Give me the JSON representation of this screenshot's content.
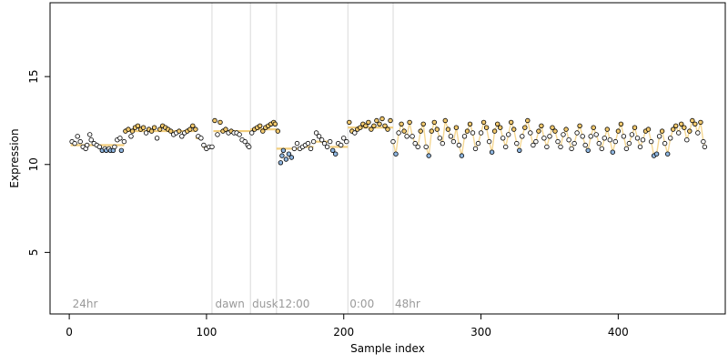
{
  "chart_data": {
    "type": "scatter",
    "title": "",
    "xlabel": "Sample index",
    "ylabel": "Expression",
    "xlim": [
      -14,
      478
    ],
    "ylim": [
      1.5,
      19.2
    ],
    "x_ticks": [
      0,
      100,
      200,
      300,
      400
    ],
    "y_ticks": [
      5,
      10,
      15
    ],
    "grid": false,
    "legend": "none",
    "sections": [
      {
        "label": "24hr",
        "start": 1
      },
      {
        "label": "dawn",
        "start": 105
      },
      {
        "label": "dusk",
        "start": 132
      },
      {
        "label": "12:00",
        "start": 151
      },
      {
        "label": "0:00",
        "start": 203
      },
      {
        "label": "48hr",
        "start": 236
      }
    ],
    "section_boundaries": [
      104,
      132,
      151,
      203,
      236
    ],
    "colors": {
      "point_fill_high": "#f2c96e",
      "point_fill_low": "#8fb6e0",
      "point_fill_mid": "#ffffff",
      "point_stroke": "#000000",
      "fit_high": "#f2c96e",
      "fit_low": "#8fb6e0",
      "boundary_line": "#d9d9d9"
    },
    "fitted_segments": [
      {
        "x": [
          1,
          40
        ],
        "y": 11.1
      },
      {
        "x": [
          40,
          92
        ],
        "y": 11.9
      },
      {
        "x": [
          92,
          97
        ],
        "y": 11.5
      },
      {
        "x": [
          97,
          105
        ],
        "y": 11.0
      },
      {
        "x": [
          105,
          132
        ],
        "y": 11.9
      },
      {
        "x": [
          132,
          151
        ],
        "y": 12.0
      },
      {
        "x": [
          151,
          170
        ],
        "y": 10.9
      },
      {
        "x": [
          170,
          178
        ],
        "y": 11.0
      },
      {
        "x": [
          178,
          190
        ],
        "y": 11.3
      },
      {
        "x": [
          190,
          203
        ],
        "y": 11.0
      },
      {
        "x": [
          203,
          236
        ],
        "y": 12.1
      }
    ],
    "series": [
      {
        "points": [
          [
            2,
            11.3
          ],
          [
            4,
            11.2
          ],
          [
            6,
            11.6
          ],
          [
            8,
            11.3
          ],
          [
            10,
            11.0
          ],
          [
            12,
            10.9
          ],
          [
            13,
            11.1
          ],
          [
            15,
            11.7
          ],
          [
            16,
            11.4
          ],
          [
            18,
            11.2
          ],
          [
            20,
            11.1
          ],
          [
            22,
            11.0
          ],
          [
            24,
            10.8
          ],
          [
            26,
            10.9
          ],
          [
            27,
            10.8
          ],
          [
            29,
            10.9
          ],
          [
            30,
            10.8
          ],
          [
            32,
            10.8
          ],
          [
            33,
            11.0
          ],
          [
            35,
            11.4
          ],
          [
            37,
            11.5
          ],
          [
            38,
            10.8
          ],
          [
            40,
            11.3
          ],
          [
            41,
            11.9
          ],
          [
            43,
            12.0
          ],
          [
            45,
            11.6
          ],
          [
            46,
            11.9
          ],
          [
            48,
            12.1
          ],
          [
            50,
            12.2
          ],
          [
            52,
            12.0
          ],
          [
            54,
            12.1
          ],
          [
            56,
            11.8
          ],
          [
            58,
            12.0
          ],
          [
            60,
            11.9
          ],
          [
            62,
            12.1
          ],
          [
            64,
            11.5
          ],
          [
            66,
            12.0
          ],
          [
            68,
            12.2
          ],
          [
            70,
            12.1
          ],
          [
            72,
            12.0
          ],
          [
            74,
            11.9
          ],
          [
            76,
            11.7
          ],
          [
            78,
            11.8
          ],
          [
            80,
            11.9
          ],
          [
            82,
            11.6
          ],
          [
            84,
            11.8
          ],
          [
            86,
            11.9
          ],
          [
            88,
            12.0
          ],
          [
            90,
            12.2
          ],
          [
            92,
            12.0
          ],
          [
            94,
            11.6
          ],
          [
            96,
            11.5
          ],
          [
            98,
            11.1
          ],
          [
            100,
            10.9
          ],
          [
            102,
            11.0
          ],
          [
            104,
            11.0
          ],
          [
            106,
            12.5
          ],
          [
            108,
            11.7
          ],
          [
            110,
            12.4
          ],
          [
            112,
            11.9
          ],
          [
            114,
            12.0
          ],
          [
            116,
            11.8
          ],
          [
            118,
            11.9
          ],
          [
            120,
            11.8
          ],
          [
            122,
            11.8
          ],
          [
            124,
            11.7
          ],
          [
            126,
            11.4
          ],
          [
            128,
            11.3
          ],
          [
            130,
            11.1
          ],
          [
            131,
            11.0
          ],
          [
            133,
            11.8
          ],
          [
            135,
            12.0
          ],
          [
            137,
            12.1
          ],
          [
            139,
            12.2
          ],
          [
            141,
            11.9
          ],
          [
            143,
            12.1
          ],
          [
            145,
            12.2
          ],
          [
            147,
            12.3
          ],
          [
            149,
            12.4
          ],
          [
            150,
            12.3
          ],
          [
            152,
            11.9
          ],
          [
            154,
            10.1
          ],
          [
            155,
            10.5
          ],
          [
            156,
            10.8
          ],
          [
            158,
            10.3
          ],
          [
            160,
            10.6
          ],
          [
            162,
            10.4
          ],
          [
            164,
            10.9
          ],
          [
            166,
            11.2
          ],
          [
            168,
            10.9
          ],
          [
            170,
            11.0
          ],
          [
            172,
            11.1
          ],
          [
            174,
            11.2
          ],
          [
            176,
            10.9
          ],
          [
            178,
            11.3
          ],
          [
            180,
            11.8
          ],
          [
            182,
            11.6
          ],
          [
            184,
            11.4
          ],
          [
            186,
            11.2
          ],
          [
            188,
            11.0
          ],
          [
            190,
            11.3
          ],
          [
            192,
            10.8
          ],
          [
            194,
            10.6
          ],
          [
            196,
            11.2
          ],
          [
            198,
            11.1
          ],
          [
            200,
            11.5
          ],
          [
            202,
            11.3
          ],
          [
            204,
            12.4
          ],
          [
            206,
            11.9
          ],
          [
            208,
            11.8
          ],
          [
            210,
            12.0
          ],
          [
            212,
            12.1
          ],
          [
            214,
            12.3
          ],
          [
            216,
            12.2
          ],
          [
            218,
            12.4
          ],
          [
            220,
            12.0
          ],
          [
            222,
            12.2
          ],
          [
            224,
            12.5
          ],
          [
            226,
            12.3
          ],
          [
            228,
            12.6
          ],
          [
            230,
            12.2
          ],
          [
            232,
            12.0
          ],
          [
            234,
            12.5
          ],
          [
            236,
            11.3
          ],
          [
            238,
            10.6
          ],
          [
            240,
            11.8
          ],
          [
            242,
            12.3
          ],
          [
            244,
            11.9
          ],
          [
            246,
            11.6
          ],
          [
            248,
            12.4
          ],
          [
            250,
            11.6
          ],
          [
            252,
            11.2
          ],
          [
            254,
            11.0
          ],
          [
            256,
            11.9
          ],
          [
            258,
            12.3
          ],
          [
            260,
            11.0
          ],
          [
            262,
            10.5
          ],
          [
            264,
            11.9
          ],
          [
            266,
            12.4
          ],
          [
            268,
            12.0
          ],
          [
            270,
            11.5
          ],
          [
            272,
            11.2
          ],
          [
            274,
            12.5
          ],
          [
            276,
            12.0
          ],
          [
            278,
            11.6
          ],
          [
            280,
            11.3
          ],
          [
            282,
            12.1
          ],
          [
            284,
            11.1
          ],
          [
            286,
            10.5
          ],
          [
            288,
            11.6
          ],
          [
            290,
            11.9
          ],
          [
            292,
            12.3
          ],
          [
            294,
            11.8
          ],
          [
            296,
            10.9
          ],
          [
            298,
            11.2
          ],
          [
            300,
            11.8
          ],
          [
            302,
            12.4
          ],
          [
            304,
            12.1
          ],
          [
            306,
            11.3
          ],
          [
            308,
            10.7
          ],
          [
            310,
            11.9
          ],
          [
            312,
            12.3
          ],
          [
            314,
            12.1
          ],
          [
            316,
            11.5
          ],
          [
            318,
            11.0
          ],
          [
            320,
            11.7
          ],
          [
            322,
            12.4
          ],
          [
            324,
            12.0
          ],
          [
            326,
            11.2
          ],
          [
            328,
            10.8
          ],
          [
            330,
            11.6
          ],
          [
            332,
            12.1
          ],
          [
            334,
            12.5
          ],
          [
            336,
            11.8
          ],
          [
            338,
            11.1
          ],
          [
            340,
            11.3
          ],
          [
            342,
            11.9
          ],
          [
            344,
            12.2
          ],
          [
            346,
            11.5
          ],
          [
            348,
            11.0
          ],
          [
            350,
            11.6
          ],
          [
            352,
            12.1
          ],
          [
            354,
            11.9
          ],
          [
            356,
            11.3
          ],
          [
            358,
            11.0
          ],
          [
            360,
            11.7
          ],
          [
            362,
            12.0
          ],
          [
            364,
            11.4
          ],
          [
            366,
            10.9
          ],
          [
            368,
            11.2
          ],
          [
            370,
            11.8
          ],
          [
            372,
            12.2
          ],
          [
            374,
            11.6
          ],
          [
            376,
            11.1
          ],
          [
            378,
            10.8
          ],
          [
            380,
            11.6
          ],
          [
            382,
            12.1
          ],
          [
            384,
            11.7
          ],
          [
            386,
            11.2
          ],
          [
            388,
            10.9
          ],
          [
            390,
            11.5
          ],
          [
            392,
            12.0
          ],
          [
            394,
            11.4
          ],
          [
            396,
            10.7
          ],
          [
            398,
            11.3
          ],
          [
            400,
            11.9
          ],
          [
            402,
            12.3
          ],
          [
            404,
            11.6
          ],
          [
            406,
            10.9
          ],
          [
            408,
            11.2
          ],
          [
            410,
            11.7
          ],
          [
            412,
            12.1
          ],
          [
            414,
            11.5
          ],
          [
            416,
            11.0
          ],
          [
            418,
            11.4
          ],
          [
            420,
            11.9
          ],
          [
            422,
            12.0
          ],
          [
            424,
            11.3
          ],
          [
            426,
            10.5
          ],
          [
            428,
            10.6
          ],
          [
            430,
            11.6
          ],
          [
            432,
            11.9
          ],
          [
            434,
            11.2
          ],
          [
            436,
            10.6
          ],
          [
            438,
            11.5
          ],
          [
            440,
            12.0
          ],
          [
            442,
            12.2
          ],
          [
            444,
            11.8
          ],
          [
            446,
            12.3
          ],
          [
            448,
            12.1
          ],
          [
            450,
            11.4
          ],
          [
            452,
            11.9
          ],
          [
            454,
            12.5
          ],
          [
            456,
            12.3
          ],
          [
            458,
            11.8
          ],
          [
            460,
            12.4
          ],
          [
            462,
            11.3
          ],
          [
            463,
            11.0
          ]
        ]
      }
    ]
  }
}
